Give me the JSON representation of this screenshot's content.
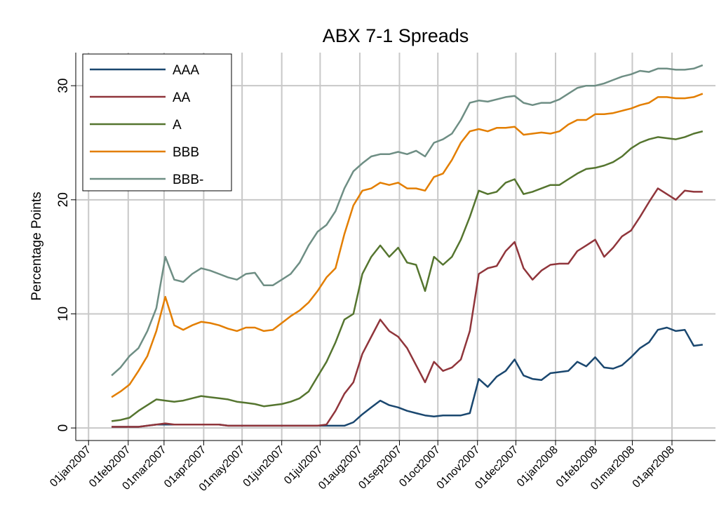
{
  "chart_data": {
    "type": "line",
    "title": "ABX 7-1 Spreads",
    "y_label": "Percentage Points",
    "grid": true,
    "legend": "upper-left",
    "xlim": [
      "2006-12-22",
      "2008-05-05"
    ],
    "ylim": [
      -1.1,
      32.9
    ],
    "yticks": [
      0,
      10,
      20,
      30
    ],
    "xticks": [
      {
        "value": "2007-01-01",
        "label": "01jan2007"
      },
      {
        "value": "2007-02-01",
        "label": "01feb2007"
      },
      {
        "value": "2007-03-01",
        "label": "01mar2007"
      },
      {
        "value": "2007-04-01",
        "label": "01apr2007"
      },
      {
        "value": "2007-05-01",
        "label": "01may2007"
      },
      {
        "value": "2007-06-01",
        "label": "01jun2007"
      },
      {
        "value": "2007-07-01",
        "label": "01jul2007"
      },
      {
        "value": "2007-08-01",
        "label": "01aug2007"
      },
      {
        "value": "2007-09-01",
        "label": "01sep2007"
      },
      {
        "value": "2007-10-01",
        "label": "01oct2007"
      },
      {
        "value": "2007-11-01",
        "label": "01nov2007"
      },
      {
        "value": "2007-12-01",
        "label": "01dec2007"
      },
      {
        "value": "2008-01-01",
        "label": "01jan2008"
      },
      {
        "value": "2008-02-01",
        "label": "01feb2008"
      },
      {
        "value": "2008-03-01",
        "label": "01mar2008"
      },
      {
        "value": "2008-04-01",
        "label": "01apr2008"
      }
    ],
    "x": [
      "2007-01-19",
      "2007-01-26",
      "2007-02-02",
      "2007-02-09",
      "2007-02-16",
      "2007-02-23",
      "2007-03-02",
      "2007-03-09",
      "2007-03-16",
      "2007-03-23",
      "2007-03-30",
      "2007-04-06",
      "2007-04-13",
      "2007-04-20",
      "2007-04-27",
      "2007-05-04",
      "2007-05-11",
      "2007-05-18",
      "2007-05-25",
      "2007-06-01",
      "2007-06-08",
      "2007-06-15",
      "2007-06-22",
      "2007-06-29",
      "2007-07-06",
      "2007-07-13",
      "2007-07-20",
      "2007-07-27",
      "2007-08-03",
      "2007-08-10",
      "2007-08-17",
      "2007-08-24",
      "2007-08-31",
      "2007-09-07",
      "2007-09-14",
      "2007-09-21",
      "2007-09-28",
      "2007-10-05",
      "2007-10-12",
      "2007-10-19",
      "2007-10-26",
      "2007-11-02",
      "2007-11-09",
      "2007-11-16",
      "2007-11-23",
      "2007-11-30",
      "2007-12-07",
      "2007-12-14",
      "2007-12-21",
      "2007-12-28",
      "2008-01-04",
      "2008-01-11",
      "2008-01-18",
      "2008-01-25",
      "2008-02-01",
      "2008-02-08",
      "2008-02-15",
      "2008-02-22",
      "2008-02-29",
      "2008-03-07",
      "2008-03-14",
      "2008-03-21",
      "2008-03-28",
      "2008-04-04",
      "2008-04-11",
      "2008-04-18",
      "2008-04-25"
    ],
    "series": [
      {
        "name": "AAA",
        "color": "#1a476f",
        "values": [
          0.1,
          0.1,
          0.1,
          0.1,
          0.2,
          0.3,
          0.3,
          0.3,
          0.3,
          0.3,
          0.3,
          0.3,
          0.3,
          0.2,
          0.2,
          0.2,
          0.2,
          0.2,
          0.2,
          0.2,
          0.2,
          0.2,
          0.2,
          0.2,
          0.2,
          0.2,
          0.2,
          0.5,
          1.2,
          1.8,
          2.4,
          2.0,
          1.8,
          1.5,
          1.3,
          1.1,
          1.0,
          1.1,
          1.1,
          1.1,
          1.3,
          4.3,
          3.6,
          4.5,
          5.0,
          6.0,
          4.6,
          4.3,
          4.2,
          4.8,
          4.9,
          5.0,
          5.8,
          5.4,
          6.2,
          5.3,
          5.2,
          5.5,
          6.2,
          7.0,
          7.5,
          8.6,
          8.8,
          8.5,
          8.6,
          7.2,
          7.3
        ]
      },
      {
        "name": "AA",
        "color": "#90353b",
        "values": [
          0.1,
          0.1,
          0.1,
          0.1,
          0.2,
          0.3,
          0.4,
          0.3,
          0.3,
          0.3,
          0.3,
          0.3,
          0.3,
          0.2,
          0.2,
          0.2,
          0.2,
          0.2,
          0.2,
          0.2,
          0.2,
          0.2,
          0.2,
          0.2,
          0.3,
          1.5,
          3.0,
          4.0,
          6.5,
          8.0,
          9.5,
          8.5,
          8.0,
          7.0,
          5.5,
          4.0,
          5.8,
          5.0,
          5.3,
          6.0,
          8.5,
          13.5,
          14.0,
          14.2,
          15.5,
          16.3,
          14.0,
          13.0,
          13.8,
          14.3,
          14.4,
          14.4,
          15.5,
          16.0,
          16.5,
          15.0,
          15.8,
          16.8,
          17.3,
          18.5,
          19.8,
          21.0,
          20.5,
          20.0,
          20.8,
          20.7,
          20.7
        ]
      },
      {
        "name": "A",
        "color": "#55752f",
        "values": [
          0.6,
          0.7,
          0.9,
          1.5,
          2.0,
          2.5,
          2.4,
          2.3,
          2.4,
          2.6,
          2.8,
          2.7,
          2.6,
          2.5,
          2.3,
          2.2,
          2.1,
          1.9,
          2.0,
          2.1,
          2.3,
          2.6,
          3.2,
          4.5,
          5.8,
          7.5,
          9.5,
          10.0,
          13.5,
          15.0,
          16.0,
          15.0,
          15.8,
          14.5,
          14.3,
          12.0,
          15.0,
          14.3,
          15.0,
          16.5,
          18.5,
          20.8,
          20.5,
          20.7,
          21.5,
          21.8,
          20.5,
          20.7,
          21.0,
          21.3,
          21.3,
          21.8,
          22.3,
          22.7,
          22.8,
          23.0,
          23.3,
          23.8,
          24.5,
          25.0,
          25.3,
          25.5,
          25.4,
          25.3,
          25.5,
          25.8,
          26.0
        ]
      },
      {
        "name": "BBB",
        "color": "#e37e00",
        "values": [
          2.7,
          3.2,
          3.8,
          5.0,
          6.3,
          8.5,
          11.5,
          9.0,
          8.6,
          9.0,
          9.3,
          9.2,
          9.0,
          8.7,
          8.5,
          8.8,
          8.8,
          8.5,
          8.6,
          9.2,
          9.8,
          10.3,
          11.0,
          12.0,
          13.2,
          14.0,
          17.0,
          19.5,
          20.8,
          21.0,
          21.5,
          21.3,
          21.5,
          21.0,
          21.0,
          20.8,
          22.0,
          22.3,
          23.5,
          25.0,
          26.0,
          26.2,
          26.0,
          26.3,
          26.3,
          26.4,
          25.7,
          25.8,
          25.9,
          25.8,
          26.0,
          26.6,
          27.0,
          27.0,
          27.5,
          27.5,
          27.6,
          27.8,
          28.0,
          28.3,
          28.5,
          29.0,
          29.0,
          28.9,
          28.9,
          29.0,
          29.3
        ]
      },
      {
        "name": "BBB-",
        "color": "#6e8e84",
        "values": [
          4.6,
          5.3,
          6.3,
          7.0,
          8.5,
          10.5,
          15.0,
          13.0,
          12.8,
          13.5,
          14.0,
          13.8,
          13.5,
          13.2,
          13.0,
          13.5,
          13.6,
          12.5,
          12.5,
          13.0,
          13.5,
          14.5,
          16.0,
          17.2,
          17.8,
          19.0,
          21.0,
          22.5,
          23.2,
          23.8,
          24.0,
          24.0,
          24.2,
          24.0,
          24.3,
          23.8,
          25.0,
          25.3,
          25.8,
          27.0,
          28.5,
          28.7,
          28.6,
          28.8,
          29.0,
          29.1,
          28.5,
          28.3,
          28.5,
          28.5,
          28.8,
          29.3,
          29.8,
          30.0,
          30.0,
          30.2,
          30.5,
          30.8,
          31.0,
          31.3,
          31.2,
          31.5,
          31.5,
          31.4,
          31.4,
          31.5,
          31.8
        ]
      }
    ]
  }
}
